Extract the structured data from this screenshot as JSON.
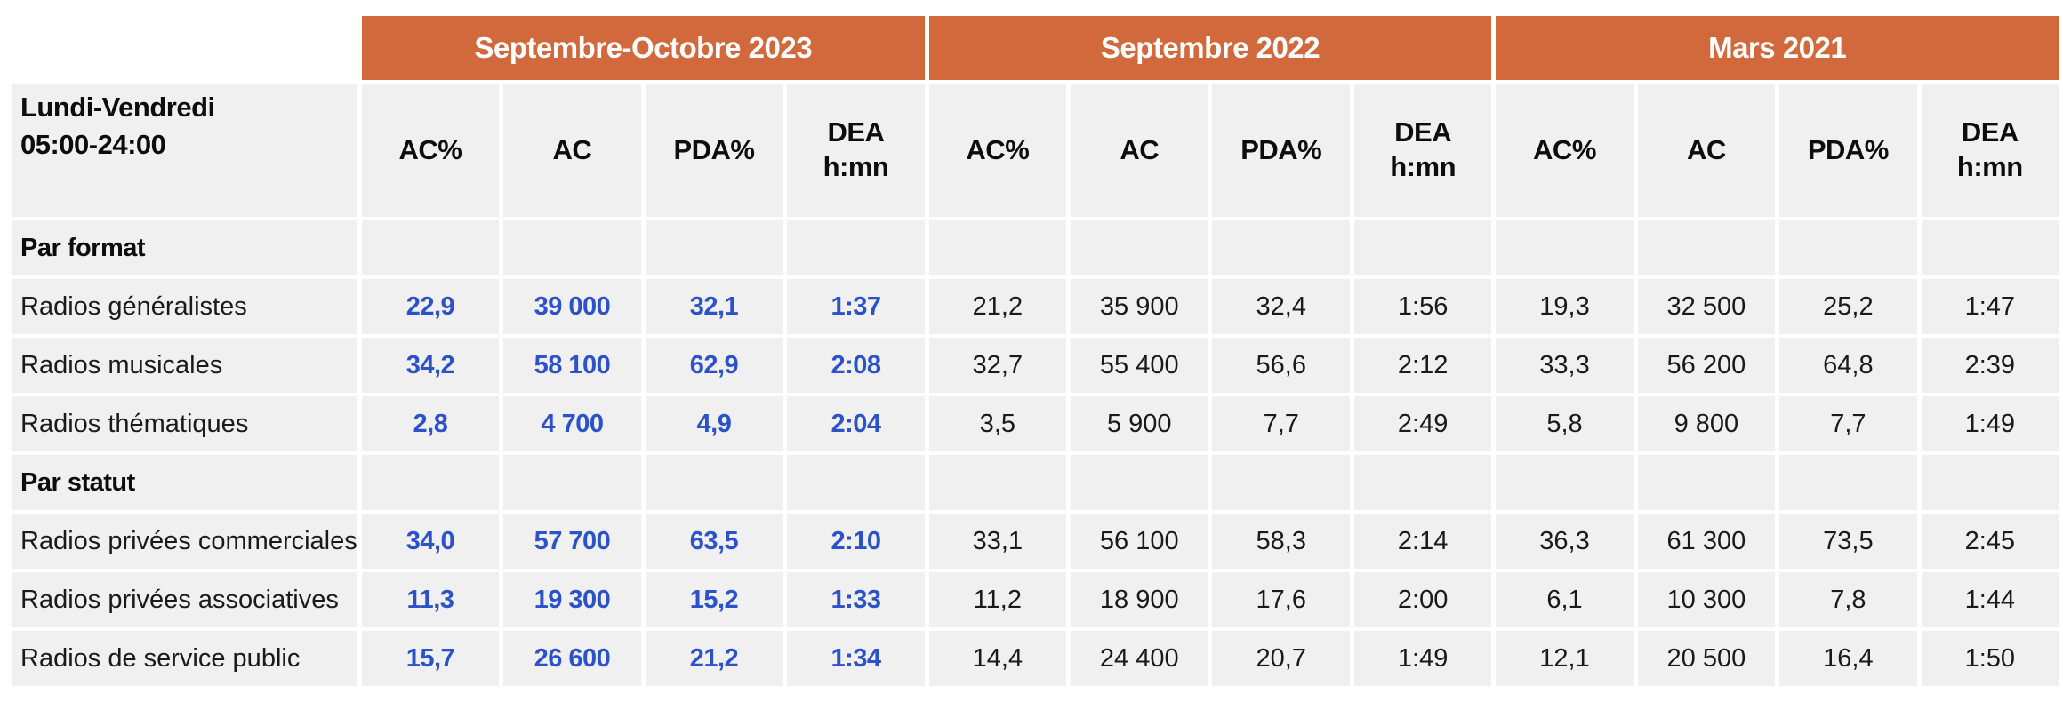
{
  "colors": {
    "period_band_orange": "#d2693c",
    "cell_gray": "#f0f0f0",
    "highlight_blue": "#2b52cb",
    "text_black": "#1a1a1a",
    "band_text_white": "#ffffff"
  },
  "chart_data": {
    "type": "table",
    "corner_label_line1": "Lundi-Vendredi",
    "corner_label_line2": "05:00-24:00",
    "column_groups": [
      {
        "label": "Septembre-Octobre 2023",
        "highlighted": true
      },
      {
        "label": "Septembre 2022",
        "highlighted": false
      },
      {
        "label": "Mars 2021",
        "highlighted": false
      }
    ],
    "metrics": {
      "ac_pct": "AC%",
      "ac": "AC",
      "pda_pct": "PDA%",
      "dea_l1": "DEA",
      "dea_l2": "h:mn"
    },
    "sections": [
      {
        "label": "Par format",
        "rows": [
          {
            "label": "Radios généralistes",
            "cells": [
              "22,9",
              "39 000",
              "32,1",
              "1:37",
              "21,2",
              "35 900",
              "32,4",
              "1:56",
              "19,3",
              "32 500",
              "25,2",
              "1:47"
            ]
          },
          {
            "label": "Radios musicales",
            "cells": [
              "34,2",
              "58 100",
              "62,9",
              "2:08",
              "32,7",
              "55 400",
              "56,6",
              "2:12",
              "33,3",
              "56 200",
              "64,8",
              "2:39"
            ]
          },
          {
            "label": "Radios thématiques",
            "cells": [
              "2,8",
              "4 700",
              "4,9",
              "2:04",
              "3,5",
              "5 900",
              "7,7",
              "2:49",
              "5,8",
              "9 800",
              "7,7",
              "1:49"
            ]
          }
        ]
      },
      {
        "label": "Par statut",
        "rows": [
          {
            "label": "Radios privées commerciales",
            "cells": [
              "34,0",
              "57 700",
              "63,5",
              "2:10",
              "33,1",
              "56 100",
              "58,3",
              "2:14",
              "36,3",
              "61 300",
              "73,5",
              "2:45"
            ]
          },
          {
            "label": "Radios privées associatives",
            "cells": [
              "11,3",
              "19 300",
              "15,2",
              "1:33",
              "11,2",
              "18 900",
              "17,6",
              "2:00",
              "6,1",
              "10 300",
              "7,8",
              "1:44"
            ]
          },
          {
            "label": "Radios de service public",
            "cells": [
              "15,7",
              "26 600",
              "21,2",
              "1:34",
              "14,4",
              "24 400",
              "20,7",
              "1:49",
              "12,1",
              "20 500",
              "16,4",
              "1:50"
            ]
          }
        ]
      }
    ]
  }
}
